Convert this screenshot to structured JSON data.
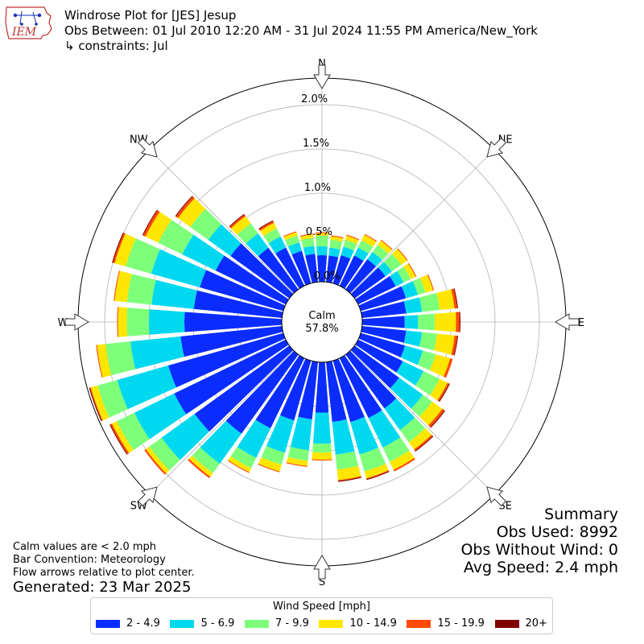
{
  "logo_text": "IEM",
  "header": {
    "title": "Windrose Plot for [JES] Jesup",
    "obs_between": "Obs Between: 01 Jul 2010 12:20 AM - 31 Jul 2024 11:55 PM America/New_York",
    "constraints": "↳ constraints: Jul"
  },
  "notes": {
    "calm_def": "Calm values are < 2.0 mph",
    "bar_convention": "Bar Convention: Meteorology",
    "flow_arrows": "Flow arrows relative to plot center.",
    "generated": "Generated: 23 Mar 2025"
  },
  "summary": {
    "title": "Summary",
    "obs_used": "Obs Used: 8992",
    "obs_without_wind": "Obs Without Wind: 0",
    "avg_speed": "Avg Speed: 2.4 mph"
  },
  "chart_data": {
    "type": "windrose",
    "title": "Windrose Plot for [JES] Jesup",
    "directions_deg": [
      0,
      10,
      20,
      30,
      40,
      50,
      60,
      70,
      80,
      90,
      100,
      110,
      120,
      130,
      140,
      150,
      160,
      170,
      180,
      190,
      200,
      210,
      220,
      230,
      240,
      250,
      260,
      270,
      280,
      290,
      300,
      310,
      320,
      330,
      340,
      350
    ],
    "direction_labels": [
      "N",
      "NE",
      "E",
      "SE",
      "S",
      "SW",
      "W",
      "NW"
    ],
    "radial_ticks": [
      "0.0%",
      "0.5%",
      "1.0%",
      "1.5%",
      "2.0%"
    ],
    "radial_tick_values": [
      0,
      0.5,
      1.0,
      1.5,
      2.0
    ],
    "rmax": 2.3,
    "calm_label": "Calm",
    "calm_value": "57.8%",
    "legend_title": "Wind Speed [mph]",
    "bins": [
      "2 - 4.9",
      "5 - 6.9",
      "7 - 9.9",
      "10 - 14.9",
      "15 - 19.9",
      "20+"
    ],
    "colors": [
      "#0a2cff",
      "#00d8f0",
      "#7dff7a",
      "#ffe600",
      "#ff4a00",
      "#800000"
    ],
    "cumulative_percent": [
      [
        0.3,
        0.4,
        0.52,
        0.55,
        0.56,
        0.56
      ],
      [
        0.3,
        0.39,
        0.48,
        0.52,
        0.53,
        0.53
      ],
      [
        0.33,
        0.43,
        0.51,
        0.56,
        0.57,
        0.57
      ],
      [
        0.38,
        0.48,
        0.57,
        0.64,
        0.65,
        0.65
      ],
      [
        0.42,
        0.52,
        0.62,
        0.68,
        0.69,
        0.69
      ],
      [
        0.43,
        0.52,
        0.65,
        0.73,
        0.74,
        0.74
      ],
      [
        0.47,
        0.57,
        0.66,
        0.72,
        0.73,
        0.73
      ],
      [
        0.53,
        0.67,
        0.76,
        0.85,
        0.86,
        0.86
      ],
      [
        0.5,
        0.68,
        0.88,
        1.05,
        1.08,
        1.09
      ],
      [
        0.48,
        0.63,
        0.82,
        1.06,
        1.1,
        1.11
      ],
      [
        0.5,
        0.68,
        0.85,
        1.05,
        1.08,
        1.09
      ],
      [
        0.52,
        0.73,
        0.88,
        1.05,
        1.08,
        1.08
      ],
      [
        0.56,
        0.82,
        1.02,
        1.12,
        1.14,
        1.15
      ],
      [
        0.62,
        0.95,
        1.08,
        1.22,
        1.25,
        1.26
      ],
      [
        0.75,
        1.05,
        1.22,
        1.32,
        1.34,
        1.35
      ],
      [
        0.75,
        1.12,
        1.3,
        1.4,
        1.42,
        1.42
      ],
      [
        0.72,
        1.1,
        1.3,
        1.38,
        1.39,
        1.4
      ],
      [
        0.68,
        1.05,
        1.22,
        1.34,
        1.35,
        1.36
      ],
      [
        0.57,
        0.92,
        1.02,
        1.1,
        1.11,
        1.11
      ],
      [
        0.65,
        1.0,
        1.12,
        1.18,
        1.19,
        1.19
      ],
      [
        0.7,
        1.08,
        1.22,
        1.3,
        1.31,
        1.31
      ],
      [
        0.88,
        1.25,
        1.38,
        1.43,
        1.44,
        1.44
      ],
      [
        1.1,
        1.52,
        1.65,
        1.7,
        1.72,
        1.72
      ],
      [
        1.32,
        1.78,
        1.95,
        2.0,
        2.02,
        2.02
      ],
      [
        1.4,
        1.9,
        2.12,
        2.18,
        2.2,
        2.21
      ],
      [
        1.35,
        1.95,
        2.18,
        2.26,
        2.27,
        2.28
      ],
      [
        1.15,
        1.72,
        2.0,
        2.1,
        2.11,
        2.11
      ],
      [
        1.1,
        1.5,
        1.75,
        1.85,
        1.86,
        1.86
      ],
      [
        1.0,
        1.48,
        1.76,
        1.9,
        1.91,
        1.91
      ],
      [
        0.98,
        1.55,
        1.85,
        1.98,
        2.0,
        2.01
      ],
      [
        0.88,
        1.3,
        1.6,
        1.76,
        1.79,
        1.8
      ],
      [
        0.82,
        1.13,
        1.38,
        1.55,
        1.58,
        1.59
      ],
      [
        0.58,
        0.78,
        0.92,
        1.02,
        1.04,
        1.05
      ],
      [
        0.48,
        0.62,
        0.72,
        0.79,
        0.81,
        0.82
      ],
      [
        0.38,
        0.48,
        0.56,
        0.6,
        0.61,
        0.61
      ],
      [
        0.32,
        0.41,
        0.5,
        0.54,
        0.55,
        0.55
      ]
    ]
  }
}
